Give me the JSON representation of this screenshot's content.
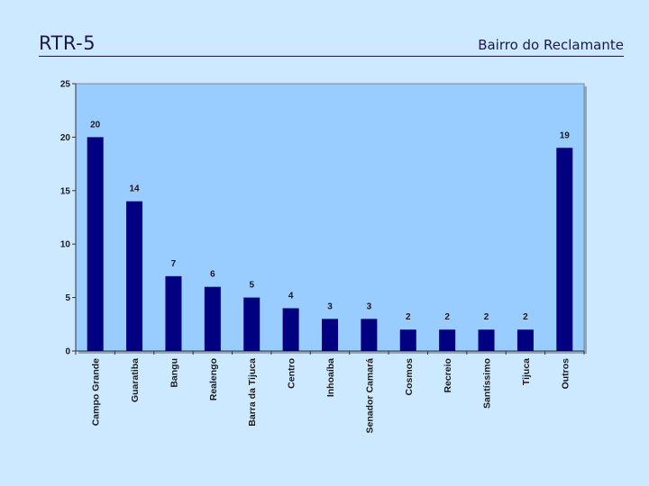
{
  "header": {
    "title": "RTR-5",
    "subtitle": "Bairro do Reclamante"
  },
  "chart_data": {
    "type": "bar",
    "categories": [
      "Campo Grande",
      "Guaratiba",
      "Bangu",
      "Realengo",
      "Barra da Tijuca",
      "Centro",
      "Inhoaíba",
      "Senador Camará",
      "Cosmos",
      "Recreio",
      "Santíssimo",
      "Tijuca",
      "Outros"
    ],
    "values": [
      20,
      14,
      7,
      6,
      5,
      4,
      3,
      3,
      2,
      2,
      2,
      2,
      19
    ],
    "ylim": [
      0,
      25
    ],
    "yticks": [
      0,
      5,
      10,
      15,
      20,
      25
    ],
    "grid": false,
    "legend": "none",
    "bar_color": "#000080",
    "plot_background": "#99ccff"
  }
}
